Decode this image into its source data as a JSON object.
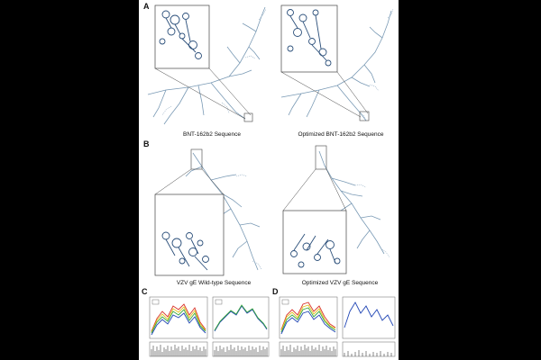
{
  "figure": {
    "panels": {
      "a": "A",
      "b": "B",
      "c": "C",
      "d": "D"
    },
    "captions": {
      "a_left": "BNT-162b2 Sequence",
      "a_right": "Optimized BNT-162b2 Sequence",
      "b_left": "VZV gE Wild-type Sequence",
      "b_right": "Optimized VZV gE Sequence"
    },
    "colors": {
      "structure": "#7a9ab5",
      "structure_dark": "#2b4f7a",
      "zoom_box": "#444444",
      "line_red": "#d9332a",
      "line_yellow": "#e4c21f",
      "line_green": "#3aa83d",
      "line_blue": "#2146b5",
      "bars": "#111111"
    }
  }
}
